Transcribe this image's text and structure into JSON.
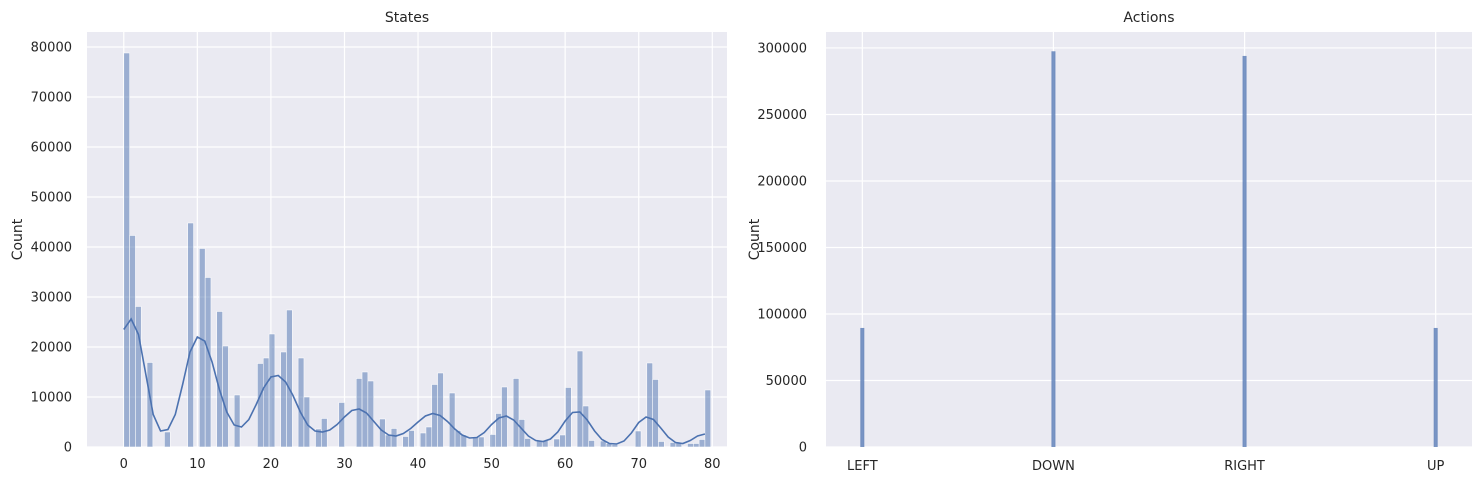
{
  "colors": {
    "panel_bg": "#eaeaf2",
    "grid": "#ffffff",
    "bar": "#4c72b0",
    "kde": "#4c72b0"
  },
  "chart_data": [
    {
      "type": "bar",
      "subtype": "histogram_with_kde",
      "title": "States",
      "xlabel": "",
      "ylabel": "Count",
      "xlim": [
        -5,
        82
      ],
      "ylim": [
        0,
        83000
      ],
      "xticks": [
        0,
        10,
        20,
        30,
        40,
        50,
        60,
        70,
        80
      ],
      "yticks": [
        0,
        10000,
        20000,
        30000,
        40000,
        50000,
        60000,
        70000,
        80000
      ],
      "bin_width": 0.79,
      "bins": [
        [
          0.0,
          78800
        ],
        [
          0.79,
          42300
        ],
        [
          1.58,
          28100
        ],
        [
          2.37,
          0
        ],
        [
          3.16,
          16900
        ],
        [
          3.95,
          0
        ],
        [
          4.74,
          0
        ],
        [
          5.53,
          3000
        ],
        [
          6.32,
          0
        ],
        [
          7.11,
          0
        ],
        [
          7.9,
          0
        ],
        [
          8.69,
          44800
        ],
        [
          9.48,
          0
        ],
        [
          10.27,
          39700
        ],
        [
          11.06,
          33900
        ],
        [
          11.85,
          0
        ],
        [
          12.64,
          27100
        ],
        [
          13.43,
          20200
        ],
        [
          14.22,
          0
        ],
        [
          15.01,
          10400
        ],
        [
          15.8,
          0
        ],
        [
          16.59,
          0
        ],
        [
          17.38,
          0
        ],
        [
          18.17,
          16700
        ],
        [
          18.96,
          17800
        ],
        [
          19.75,
          22600
        ],
        [
          20.54,
          0
        ],
        [
          21.33,
          19000
        ],
        [
          22.12,
          27400
        ],
        [
          22.91,
          0
        ],
        [
          23.7,
          17800
        ],
        [
          24.49,
          10000
        ],
        [
          25.28,
          0
        ],
        [
          26.07,
          3600
        ],
        [
          26.86,
          5700
        ],
        [
          27.65,
          0
        ],
        [
          28.44,
          0
        ],
        [
          29.23,
          8900
        ],
        [
          30.02,
          0
        ],
        [
          30.81,
          0
        ],
        [
          31.6,
          13700
        ],
        [
          32.39,
          15000
        ],
        [
          33.18,
          13200
        ],
        [
          33.97,
          0
        ],
        [
          34.76,
          5600
        ],
        [
          35.55,
          2400
        ],
        [
          36.34,
          3700
        ],
        [
          37.13,
          0
        ],
        [
          37.92,
          2100
        ],
        [
          38.71,
          3300
        ],
        [
          39.5,
          0
        ],
        [
          40.29,
          2800
        ],
        [
          41.08,
          4000
        ],
        [
          41.87,
          12500
        ],
        [
          42.66,
          14800
        ],
        [
          43.45,
          0
        ],
        [
          44.24,
          10800
        ],
        [
          45.03,
          3300
        ],
        [
          45.82,
          2400
        ],
        [
          46.61,
          0
        ],
        [
          47.4,
          2000
        ],
        [
          48.19,
          2000
        ],
        [
          48.98,
          0
        ],
        [
          49.77,
          2500
        ],
        [
          50.56,
          6700
        ],
        [
          51.35,
          12000
        ],
        [
          52.14,
          0
        ],
        [
          52.93,
          13700
        ],
        [
          53.72,
          5500
        ],
        [
          54.51,
          1700
        ],
        [
          55.3,
          0
        ],
        [
          56.09,
          1300
        ],
        [
          56.88,
          1300
        ],
        [
          57.67,
          0
        ],
        [
          58.46,
          1600
        ],
        [
          59.25,
          2400
        ],
        [
          60.04,
          11900
        ],
        [
          60.83,
          0
        ],
        [
          61.62,
          19200
        ],
        [
          62.41,
          8200
        ],
        [
          63.2,
          1300
        ],
        [
          63.99,
          0
        ],
        [
          64.78,
          1200
        ],
        [
          65.57,
          700
        ],
        [
          66.36,
          500
        ],
        [
          67.15,
          0
        ],
        [
          67.94,
          0
        ],
        [
          68.73,
          0
        ],
        [
          69.52,
          3200
        ],
        [
          70.31,
          0
        ],
        [
          71.1,
          16800
        ],
        [
          71.89,
          13500
        ],
        [
          72.68,
          1100
        ],
        [
          73.47,
          0
        ],
        [
          74.26,
          900
        ],
        [
          75.05,
          900
        ],
        [
          75.84,
          0
        ],
        [
          76.63,
          700
        ],
        [
          77.42,
          700
        ],
        [
          78.21,
          1500
        ],
        [
          79.0,
          11400
        ]
      ],
      "kde": [
        [
          0,
          23500
        ],
        [
          1,
          25600
        ],
        [
          2,
          22500
        ],
        [
          3,
          14500
        ],
        [
          4,
          6500
        ],
        [
          5,
          3200
        ],
        [
          6,
          3500
        ],
        [
          7,
          6500
        ],
        [
          8,
          12500
        ],
        [
          9,
          19000
        ],
        [
          10,
          22000
        ],
        [
          11,
          21200
        ],
        [
          12,
          17000
        ],
        [
          13,
          11500
        ],
        [
          14,
          7000
        ],
        [
          15,
          4400
        ],
        [
          16,
          4000
        ],
        [
          17,
          5500
        ],
        [
          18,
          8500
        ],
        [
          19,
          11800
        ],
        [
          20,
          14000
        ],
        [
          21,
          14300
        ],
        [
          22,
          13000
        ],
        [
          23,
          10300
        ],
        [
          24,
          7000
        ],
        [
          25,
          4400
        ],
        [
          26,
          3200
        ],
        [
          27,
          3000
        ],
        [
          28,
          3400
        ],
        [
          29,
          4500
        ],
        [
          30,
          6000
        ],
        [
          31,
          7300
        ],
        [
          32,
          7600
        ],
        [
          33,
          6800
        ],
        [
          34,
          5100
        ],
        [
          35,
          3400
        ],
        [
          36,
          2400
        ],
        [
          37,
          2200
        ],
        [
          38,
          2700
        ],
        [
          39,
          3700
        ],
        [
          40,
          5000
        ],
        [
          41,
          6200
        ],
        [
          42,
          6700
        ],
        [
          43,
          6300
        ],
        [
          44,
          5100
        ],
        [
          45,
          3600
        ],
        [
          46,
          2400
        ],
        [
          47,
          1800
        ],
        [
          48,
          1900
        ],
        [
          49,
          2900
        ],
        [
          50,
          4500
        ],
        [
          51,
          5800
        ],
        [
          52,
          6200
        ],
        [
          53,
          5400
        ],
        [
          54,
          3800
        ],
        [
          55,
          2200
        ],
        [
          56,
          1300
        ],
        [
          57,
          1100
        ],
        [
          58,
          1600
        ],
        [
          59,
          3000
        ],
        [
          60,
          5200
        ],
        [
          61,
          6900
        ],
        [
          62,
          7000
        ],
        [
          63,
          5400
        ],
        [
          64,
          3200
        ],
        [
          65,
          1500
        ],
        [
          66,
          700
        ],
        [
          67,
          600
        ],
        [
          68,
          1200
        ],
        [
          69,
          2800
        ],
        [
          70,
          4900
        ],
        [
          71,
          6000
        ],
        [
          72,
          5500
        ],
        [
          73,
          3800
        ],
        [
          74,
          2000
        ],
        [
          75,
          900
        ],
        [
          76,
          700
        ],
        [
          77,
          1300
        ],
        [
          78,
          2200
        ],
        [
          79,
          2600
        ]
      ]
    },
    {
      "type": "bar",
      "subtype": "histogram",
      "title": "Actions",
      "xlabel": "",
      "ylabel": "Count",
      "ylim": [
        0,
        312000
      ],
      "yticks": [
        0,
        50000,
        100000,
        150000,
        200000,
        250000,
        300000
      ],
      "categories": [
        "LEFT",
        "DOWN",
        "RIGHT",
        "UP"
      ],
      "values": [
        89500,
        297500,
        294000,
        89500
      ]
    }
  ]
}
